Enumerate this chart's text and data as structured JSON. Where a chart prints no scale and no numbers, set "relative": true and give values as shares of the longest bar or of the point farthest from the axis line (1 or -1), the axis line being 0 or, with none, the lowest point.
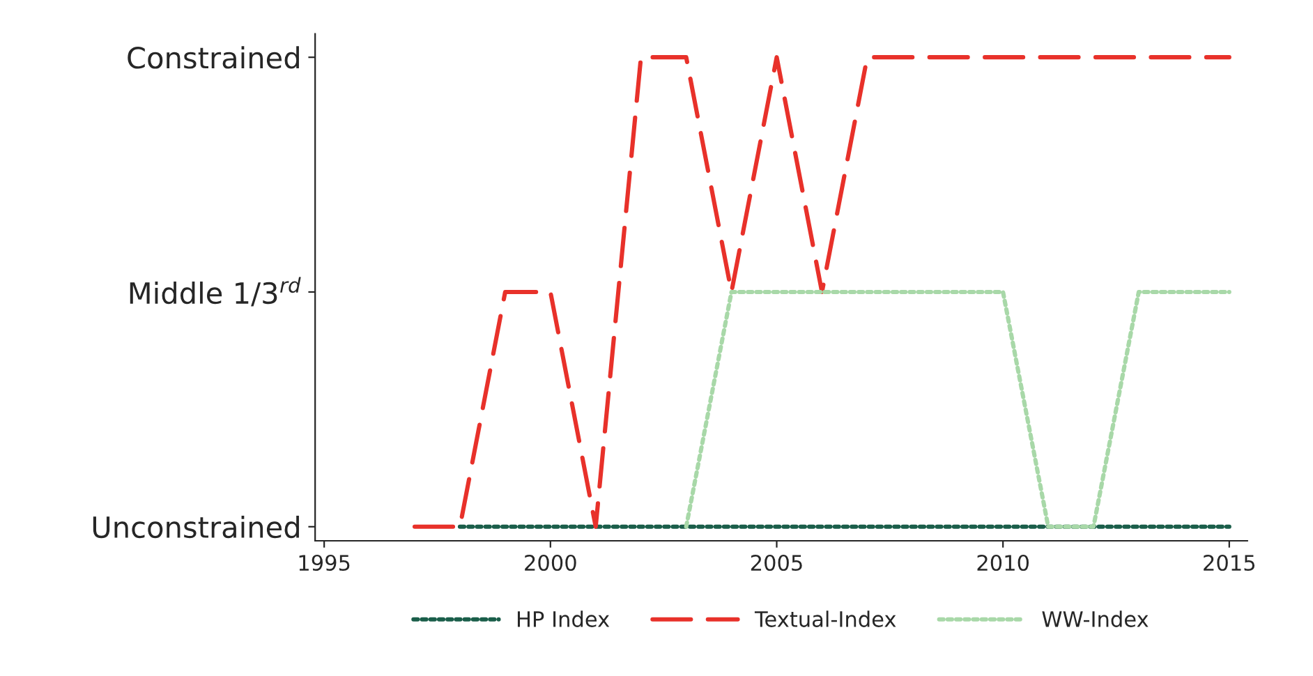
{
  "chart_data": {
    "type": "line",
    "x": [
      1997,
      1998,
      1999,
      2000,
      2001,
      2002,
      2003,
      2004,
      2005,
      2006,
      2007,
      2008,
      2009,
      2010,
      2011,
      2012,
      2013,
      2014,
      2015
    ],
    "series": [
      {
        "name": "HP Index",
        "color": "#1a5e4a",
        "line_style": "dotted",
        "values": [
          null,
          0,
          0,
          0,
          0,
          0,
          0,
          0,
          0,
          0,
          0,
          0,
          0,
          0,
          0,
          0,
          0,
          0,
          0
        ]
      },
      {
        "name": "Textual-Index",
        "color": "#e8312a",
        "line_style": "dashed",
        "values": [
          0,
          0,
          0.5,
          0.5,
          0,
          1,
          1,
          0.5,
          1,
          0.5,
          1,
          1,
          1,
          1,
          1,
          1,
          1,
          1,
          1
        ]
      },
      {
        "name": "WW-Index",
        "color": "#a8d8a8",
        "line_style": "dotted",
        "values": [
          null,
          null,
          null,
          null,
          null,
          null,
          0,
          0.5,
          0.5,
          0.5,
          0.5,
          0.5,
          0.5,
          0.5,
          0,
          0,
          0.5,
          0.5,
          0.5
        ]
      }
    ],
    "relative": true,
    "y_categories": [
      "Constrained",
      "Middle 1/3$^{rd}$",
      "Unconstrained"
    ],
    "xlim": [
      1994.8,
      2015.4
    ],
    "xticks": [
      1995,
      2000,
      2005,
      2010,
      2015
    ],
    "legend": "bottom"
  }
}
